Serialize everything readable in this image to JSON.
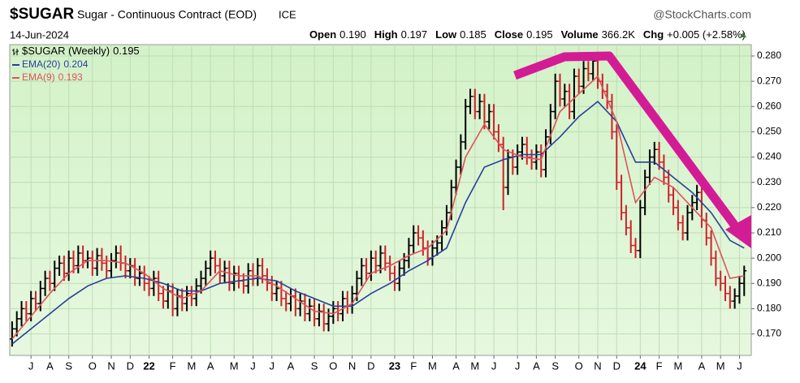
{
  "chart_data": {
    "type": "ohlc",
    "symbol": "$SUGAR",
    "title": "Sugar - Continuous Contract (EOD)",
    "exchange": "ICE",
    "source": "@StockCharts.com",
    "date": "14-Jun-2024",
    "quote": [
      {
        "label": "Open",
        "value": "0.190"
      },
      {
        "label": "High",
        "value": "0.197"
      },
      {
        "label": "Low",
        "value": "0.185"
      },
      {
        "label": "Close",
        "value": "0.195"
      },
      {
        "label": "Volume",
        "value": "366.2K"
      },
      {
        "label": "Chg",
        "value": "+0.005 (+2.58%)"
      }
    ],
    "series": [
      {
        "name": "$SUGAR (Weekly)",
        "legend_value": 0.195,
        "up_color": "#000000",
        "down_color": "#d0202a",
        "open": [
          0.168,
          0.172,
          0.176,
          0.18,
          0.178,
          0.184,
          0.182,
          0.188,
          0.192,
          0.19,
          0.196,
          0.198,
          0.194,
          0.2,
          0.197,
          0.202,
          0.199,
          0.2,
          0.196,
          0.201,
          0.198,
          0.195,
          0.199,
          0.202,
          0.198,
          0.195,
          0.197,
          0.192,
          0.194,
          0.19,
          0.188,
          0.192,
          0.186,
          0.183,
          0.187,
          0.18,
          0.185,
          0.182,
          0.186,
          0.184,
          0.189,
          0.192,
          0.196,
          0.2,
          0.197,
          0.193,
          0.196,
          0.19,
          0.194,
          0.191,
          0.189,
          0.195,
          0.192,
          0.197,
          0.193,
          0.19,
          0.186,
          0.188,
          0.184,
          0.182,
          0.185,
          0.18,
          0.183,
          0.178,
          0.181,
          0.176,
          0.179,
          0.174,
          0.177,
          0.18,
          0.178,
          0.184,
          0.181,
          0.186,
          0.192,
          0.197,
          0.194,
          0.2,
          0.197,
          0.202,
          0.198,
          0.194,
          0.19,
          0.196,
          0.199,
          0.205,
          0.21,
          0.208,
          0.204,
          0.2,
          0.204,
          0.206,
          0.212,
          0.218,
          0.228,
          0.236,
          0.246,
          0.26,
          0.264,
          0.258,
          0.262,
          0.254,
          0.258,
          0.25,
          0.245,
          0.228,
          0.24,
          0.236,
          0.242,
          0.245,
          0.24,
          0.238,
          0.242,
          0.235,
          0.248,
          0.258,
          0.27,
          0.263,
          0.266,
          0.258,
          0.272,
          0.268,
          0.275,
          0.273,
          0.278,
          0.27,
          0.266,
          0.262,
          0.25,
          0.23,
          0.218,
          0.212,
          0.205,
          0.203,
          0.22,
          0.232,
          0.24,
          0.243,
          0.238,
          0.232,
          0.225,
          0.22,
          0.214,
          0.21,
          0.218,
          0.222,
          0.226,
          0.215,
          0.208,
          0.2,
          0.192,
          0.19,
          0.186,
          0.183,
          0.185,
          0.19
        ],
        "high": [
          0.175,
          0.179,
          0.183,
          0.183,
          0.187,
          0.187,
          0.191,
          0.195,
          0.195,
          0.199,
          0.201,
          0.201,
          0.203,
          0.203,
          0.205,
          0.205,
          0.203,
          0.203,
          0.204,
          0.204,
          0.201,
          0.202,
          0.205,
          0.205,
          0.201,
          0.2,
          0.2,
          0.197,
          0.197,
          0.193,
          0.195,
          0.195,
          0.189,
          0.19,
          0.19,
          0.188,
          0.188,
          0.189,
          0.189,
          0.192,
          0.195,
          0.199,
          0.203,
          0.203,
          0.2,
          0.199,
          0.199,
          0.197,
          0.197,
          0.194,
          0.198,
          0.198,
          0.2,
          0.2,
          0.196,
          0.193,
          0.191,
          0.191,
          0.187,
          0.188,
          0.188,
          0.186,
          0.186,
          0.184,
          0.184,
          0.182,
          0.182,
          0.18,
          0.183,
          0.183,
          0.187,
          0.187,
          0.189,
          0.195,
          0.2,
          0.2,
          0.203,
          0.203,
          0.205,
          0.205,
          0.201,
          0.197,
          0.199,
          0.202,
          0.208,
          0.213,
          0.213,
          0.211,
          0.207,
          0.207,
          0.209,
          0.215,
          0.221,
          0.231,
          0.239,
          0.249,
          0.263,
          0.267,
          0.267,
          0.265,
          0.265,
          0.261,
          0.261,
          0.253,
          0.248,
          0.243,
          0.243,
          0.245,
          0.248,
          0.248,
          0.243,
          0.245,
          0.245,
          0.251,
          0.261,
          0.273,
          0.273,
          0.269,
          0.269,
          0.275,
          0.275,
          0.278,
          0.278,
          0.281,
          0.281,
          0.273,
          0.269,
          0.265,
          0.253,
          0.233,
          0.221,
          0.215,
          0.208,
          0.223,
          0.235,
          0.243,
          0.246,
          0.246,
          0.241,
          0.235,
          0.228,
          0.223,
          0.217,
          0.221,
          0.225,
          0.229,
          0.229,
          0.218,
          0.211,
          0.203,
          0.195,
          0.193,
          0.189,
          0.188,
          0.193,
          0.197
        ],
        "low": [
          0.165,
          0.169,
          0.173,
          0.175,
          0.175,
          0.179,
          0.179,
          0.185,
          0.187,
          0.187,
          0.193,
          0.191,
          0.191,
          0.194,
          0.194,
          0.196,
          0.196,
          0.193,
          0.193,
          0.195,
          0.192,
          0.192,
          0.196,
          0.195,
          0.192,
          0.192,
          0.189,
          0.189,
          0.187,
          0.185,
          0.185,
          0.183,
          0.18,
          0.18,
          0.177,
          0.177,
          0.179,
          0.179,
          0.181,
          0.181,
          0.186,
          0.189,
          0.193,
          0.194,
          0.19,
          0.19,
          0.187,
          0.187,
          0.188,
          0.186,
          0.186,
          0.189,
          0.189,
          0.19,
          0.187,
          0.183,
          0.183,
          0.181,
          0.179,
          0.179,
          0.177,
          0.177,
          0.175,
          0.175,
          0.173,
          0.173,
          0.171,
          0.171,
          0.174,
          0.175,
          0.175,
          0.178,
          0.178,
          0.183,
          0.189,
          0.191,
          0.191,
          0.194,
          0.194,
          0.195,
          0.191,
          0.187,
          0.187,
          0.193,
          0.196,
          0.202,
          0.205,
          0.201,
          0.197,
          0.197,
          0.201,
          0.203,
          0.209,
          0.215,
          0.225,
          0.233,
          0.243,
          0.257,
          0.255,
          0.255,
          0.251,
          0.251,
          0.247,
          0.242,
          0.219,
          0.225,
          0.233,
          0.233,
          0.239,
          0.237,
          0.235,
          0.235,
          0.232,
          0.232,
          0.245,
          0.255,
          0.26,
          0.26,
          0.255,
          0.255,
          0.265,
          0.265,
          0.27,
          0.27,
          0.267,
          0.263,
          0.259,
          0.247,
          0.227,
          0.215,
          0.209,
          0.202,
          0.2,
          0.2,
          0.217,
          0.229,
          0.237,
          0.235,
          0.229,
          0.222,
          0.217,
          0.211,
          0.207,
          0.207,
          0.215,
          0.219,
          0.212,
          0.205,
          0.197,
          0.189,
          0.187,
          0.183,
          0.18,
          0.18,
          0.182,
          0.185
        ],
        "close": [
          0.172,
          0.176,
          0.18,
          0.178,
          0.184,
          0.182,
          0.188,
          0.192,
          0.19,
          0.196,
          0.198,
          0.194,
          0.2,
          0.197,
          0.202,
          0.199,
          0.2,
          0.196,
          0.201,
          0.198,
          0.195,
          0.199,
          0.202,
          0.198,
          0.195,
          0.197,
          0.192,
          0.194,
          0.19,
          0.188,
          0.192,
          0.186,
          0.183,
          0.187,
          0.18,
          0.185,
          0.182,
          0.186,
          0.184,
          0.189,
          0.192,
          0.196,
          0.2,
          0.197,
          0.193,
          0.196,
          0.19,
          0.194,
          0.191,
          0.189,
          0.195,
          0.192,
          0.197,
          0.193,
          0.19,
          0.186,
          0.188,
          0.184,
          0.182,
          0.185,
          0.18,
          0.183,
          0.178,
          0.181,
          0.176,
          0.179,
          0.174,
          0.177,
          0.18,
          0.178,
          0.184,
          0.181,
          0.186,
          0.192,
          0.197,
          0.194,
          0.2,
          0.197,
          0.202,
          0.198,
          0.194,
          0.19,
          0.196,
          0.199,
          0.205,
          0.21,
          0.208,
          0.204,
          0.2,
          0.204,
          0.206,
          0.212,
          0.218,
          0.228,
          0.236,
          0.246,
          0.26,
          0.264,
          0.258,
          0.262,
          0.254,
          0.258,
          0.25,
          0.245,
          0.228,
          0.24,
          0.236,
          0.242,
          0.245,
          0.24,
          0.238,
          0.242,
          0.235,
          0.248,
          0.258,
          0.27,
          0.263,
          0.266,
          0.258,
          0.272,
          0.268,
          0.275,
          0.273,
          0.278,
          0.27,
          0.266,
          0.262,
          0.25,
          0.23,
          0.218,
          0.212,
          0.205,
          0.203,
          0.22,
          0.232,
          0.24,
          0.243,
          0.238,
          0.232,
          0.225,
          0.22,
          0.214,
          0.21,
          0.218,
          0.222,
          0.226,
          0.215,
          0.208,
          0.2,
          0.192,
          0.19,
          0.186,
          0.183,
          0.185,
          0.19,
          0.195
        ]
      }
    ],
    "overlays": [
      {
        "name": "EMA(20)",
        "legend_value": 0.204,
        "color": "#2a3f9a",
        "x": [
          0,
          4,
          8,
          12,
          16,
          20,
          24,
          28,
          32,
          36,
          40,
          44,
          48,
          52,
          56,
          60,
          64,
          68,
          72,
          76,
          80,
          84,
          88,
          92,
          96,
          100,
          104,
          108,
          112,
          116,
          120,
          124,
          128,
          132,
          136,
          140,
          144,
          148,
          152,
          155
        ],
        "values": [
          0.166,
          0.172,
          0.178,
          0.184,
          0.189,
          0.192,
          0.193,
          0.192,
          0.19,
          0.187,
          0.187,
          0.19,
          0.191,
          0.192,
          0.191,
          0.187,
          0.184,
          0.181,
          0.181,
          0.186,
          0.19,
          0.195,
          0.199,
          0.204,
          0.222,
          0.236,
          0.239,
          0.241,
          0.241,
          0.248,
          0.256,
          0.262,
          0.254,
          0.238,
          0.238,
          0.232,
          0.226,
          0.218,
          0.207,
          0.204
        ]
      },
      {
        "name": "EMA(9)",
        "legend_value": 0.193,
        "color": "#e0525c",
        "x": [
          0,
          4,
          8,
          12,
          16,
          20,
          24,
          28,
          32,
          36,
          40,
          44,
          48,
          52,
          56,
          60,
          64,
          68,
          72,
          76,
          80,
          84,
          88,
          92,
          96,
          100,
          104,
          108,
          112,
          116,
          120,
          124,
          128,
          132,
          136,
          140,
          144,
          148,
          152,
          155
        ],
        "values": [
          0.168,
          0.177,
          0.186,
          0.194,
          0.199,
          0.199,
          0.198,
          0.194,
          0.188,
          0.184,
          0.187,
          0.195,
          0.193,
          0.193,
          0.189,
          0.184,
          0.179,
          0.178,
          0.182,
          0.194,
          0.197,
          0.201,
          0.204,
          0.211,
          0.24,
          0.253,
          0.243,
          0.24,
          0.239,
          0.258,
          0.265,
          0.272,
          0.254,
          0.222,
          0.232,
          0.228,
          0.22,
          0.212,
          0.192,
          0.193
        ]
      }
    ],
    "xlim": [
      -0.5,
      156.5
    ],
    "xticks": [
      {
        "value": 4,
        "label": "J"
      },
      {
        "value": 8,
        "label": "A"
      },
      {
        "value": 12,
        "label": "S"
      },
      {
        "value": 17,
        "label": "O"
      },
      {
        "value": 21,
        "label": "N"
      },
      {
        "value": 25,
        "label": "D"
      },
      {
        "value": 29,
        "label": "22"
      },
      {
        "value": 34,
        "label": "F"
      },
      {
        "value": 38,
        "label": "M"
      },
      {
        "value": 42,
        "label": "A"
      },
      {
        "value": 47,
        "label": "M"
      },
      {
        "value": 51,
        "label": "J"
      },
      {
        "value": 55,
        "label": "J"
      },
      {
        "value": 59,
        "label": "A"
      },
      {
        "value": 64,
        "label": "S"
      },
      {
        "value": 68,
        "label": "O"
      },
      {
        "value": 72,
        "label": "N"
      },
      {
        "value": 76,
        "label": "D"
      },
      {
        "value": 81,
        "label": "23"
      },
      {
        "value": 85,
        "label": "F"
      },
      {
        "value": 89,
        "label": "M"
      },
      {
        "value": 94,
        "label": "A"
      },
      {
        "value": 98,
        "label": "M"
      },
      {
        "value": 102,
        "label": "J"
      },
      {
        "value": 107,
        "label": "J"
      },
      {
        "value": 111,
        "label": "A"
      },
      {
        "value": 115,
        "label": "S"
      },
      {
        "value": 120,
        "label": "O"
      },
      {
        "value": 124,
        "label": "N"
      },
      {
        "value": 128,
        "label": "D"
      },
      {
        "value": 133,
        "label": "24"
      },
      {
        "value": 137,
        "label": "F"
      },
      {
        "value": 141,
        "label": "M"
      },
      {
        "value": 146,
        "label": "A"
      },
      {
        "value": 150,
        "label": "M"
      },
      {
        "value": 154,
        "label": "J"
      }
    ],
    "ylim": [
      0.1615,
      0.2845
    ],
    "yticks": [
      {
        "value": 0.17,
        "label": "0.170"
      },
      {
        "value": 0.18,
        "label": "0.180"
      },
      {
        "value": 0.19,
        "label": "0.190"
      },
      {
        "value": 0.2,
        "label": "0.200"
      },
      {
        "value": 0.21,
        "label": "0.210"
      },
      {
        "value": 0.22,
        "label": "0.220"
      },
      {
        "value": 0.23,
        "label": "0.230"
      },
      {
        "value": 0.24,
        "label": "0.240"
      },
      {
        "value": 0.25,
        "label": "0.250"
      },
      {
        "value": 0.26,
        "label": "0.260"
      },
      {
        "value": 0.27,
        "label": "0.270"
      },
      {
        "value": 0.28,
        "label": "0.280"
      }
    ],
    "grid": true
  }
}
